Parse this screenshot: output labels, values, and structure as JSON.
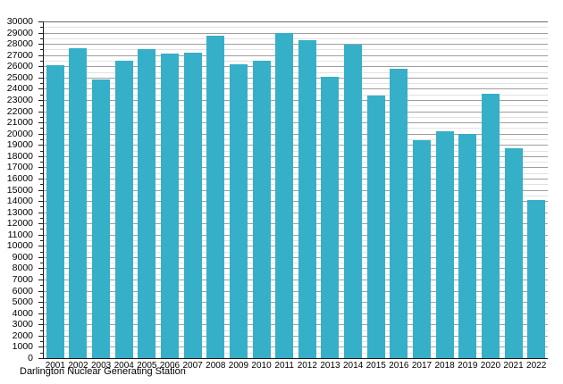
{
  "chart_data": {
    "type": "bar",
    "title": "",
    "caption": "Darlington Nuclear Generating Station",
    "categories": [
      "2001",
      "2002",
      "2003",
      "2004",
      "2005",
      "2006",
      "2007",
      "2008",
      "2009",
      "2010",
      "2011",
      "2012",
      "2013",
      "2014",
      "2015",
      "2016",
      "2017",
      "2018",
      "2019",
      "2020",
      "2021",
      "2022"
    ],
    "values": [
      26100,
      27600,
      24850,
      26500,
      27500,
      27150,
      27250,
      28750,
      26150,
      26500,
      28950,
      28350,
      25100,
      27950,
      23400,
      25800,
      19400,
      20250,
      20000,
      23550,
      18700,
      14100
    ],
    "xlabel": "",
    "ylabel": "",
    "ylim": [
      0,
      30000
    ],
    "y_major_step": 1000,
    "y_minor_step": 500,
    "grid": "horizontal",
    "legend": "none",
    "bar_color": "#36afc8",
    "major_grid_color": "#9e9e9e",
    "minor_grid_color": "#e2e2e2",
    "top_grid_color": "#6b6b6b",
    "axis_color": "#1a1a1a",
    "text_color": "#000000"
  }
}
